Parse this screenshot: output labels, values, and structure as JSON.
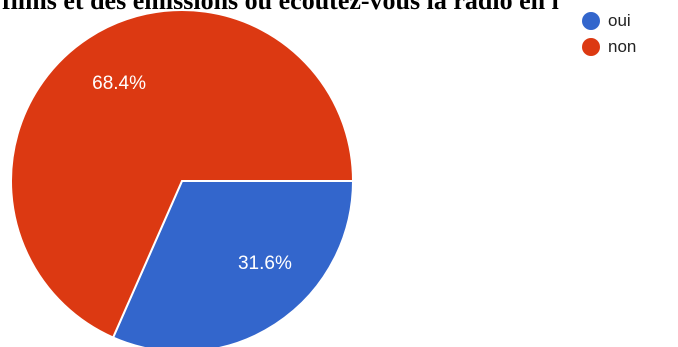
{
  "chart_data": {
    "type": "pie",
    "title": "films et des émissions ou écoutez-vous la radio en l",
    "categories": [
      "oui",
      "non"
    ],
    "values": [
      31.6,
      68.4
    ],
    "labels": [
      "31.6%",
      "68.4%"
    ],
    "colors": [
      "#3366cc",
      "#dc3912"
    ],
    "legend_position": "top-right"
  }
}
